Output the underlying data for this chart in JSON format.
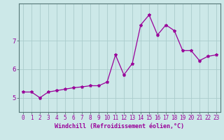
{
  "x": [
    0,
    1,
    2,
    3,
    4,
    5,
    6,
    7,
    8,
    9,
    10,
    11,
    12,
    13,
    14,
    15,
    16,
    17,
    18,
    19,
    20,
    21,
    22,
    23
  ],
  "y": [
    5.2,
    5.2,
    5.0,
    5.2,
    5.25,
    5.3,
    5.35,
    5.38,
    5.42,
    5.42,
    5.55,
    6.5,
    5.8,
    6.2,
    7.55,
    7.9,
    7.2,
    7.55,
    7.35,
    6.65,
    6.65,
    6.3,
    6.45,
    6.5
  ],
  "line_color": "#990099",
  "marker": "*",
  "marker_size": 3,
  "bg_color": "#cce8e8",
  "grid_color": "#aacccc",
  "xlabel": "Windchill (Refroidissement éolien,°C)",
  "xlabel_color": "#990099",
  "yticks": [
    5,
    6,
    7
  ],
  "xtick_labels": [
    "0",
    "1",
    "2",
    "3",
    "4",
    "5",
    "6",
    "7",
    "8",
    "9",
    "10",
    "11",
    "12",
    "13",
    "14",
    "15",
    "16",
    "17",
    "18",
    "19",
    "20",
    "21",
    "22",
    "23"
  ],
  "ylim": [
    4.5,
    8.3
  ],
  "xlim": [
    -0.5,
    23.5
  ],
  "tick_fontsize": 5.5,
  "xlabel_fontsize": 6.0,
  "ytick_fontsize": 6.5
}
